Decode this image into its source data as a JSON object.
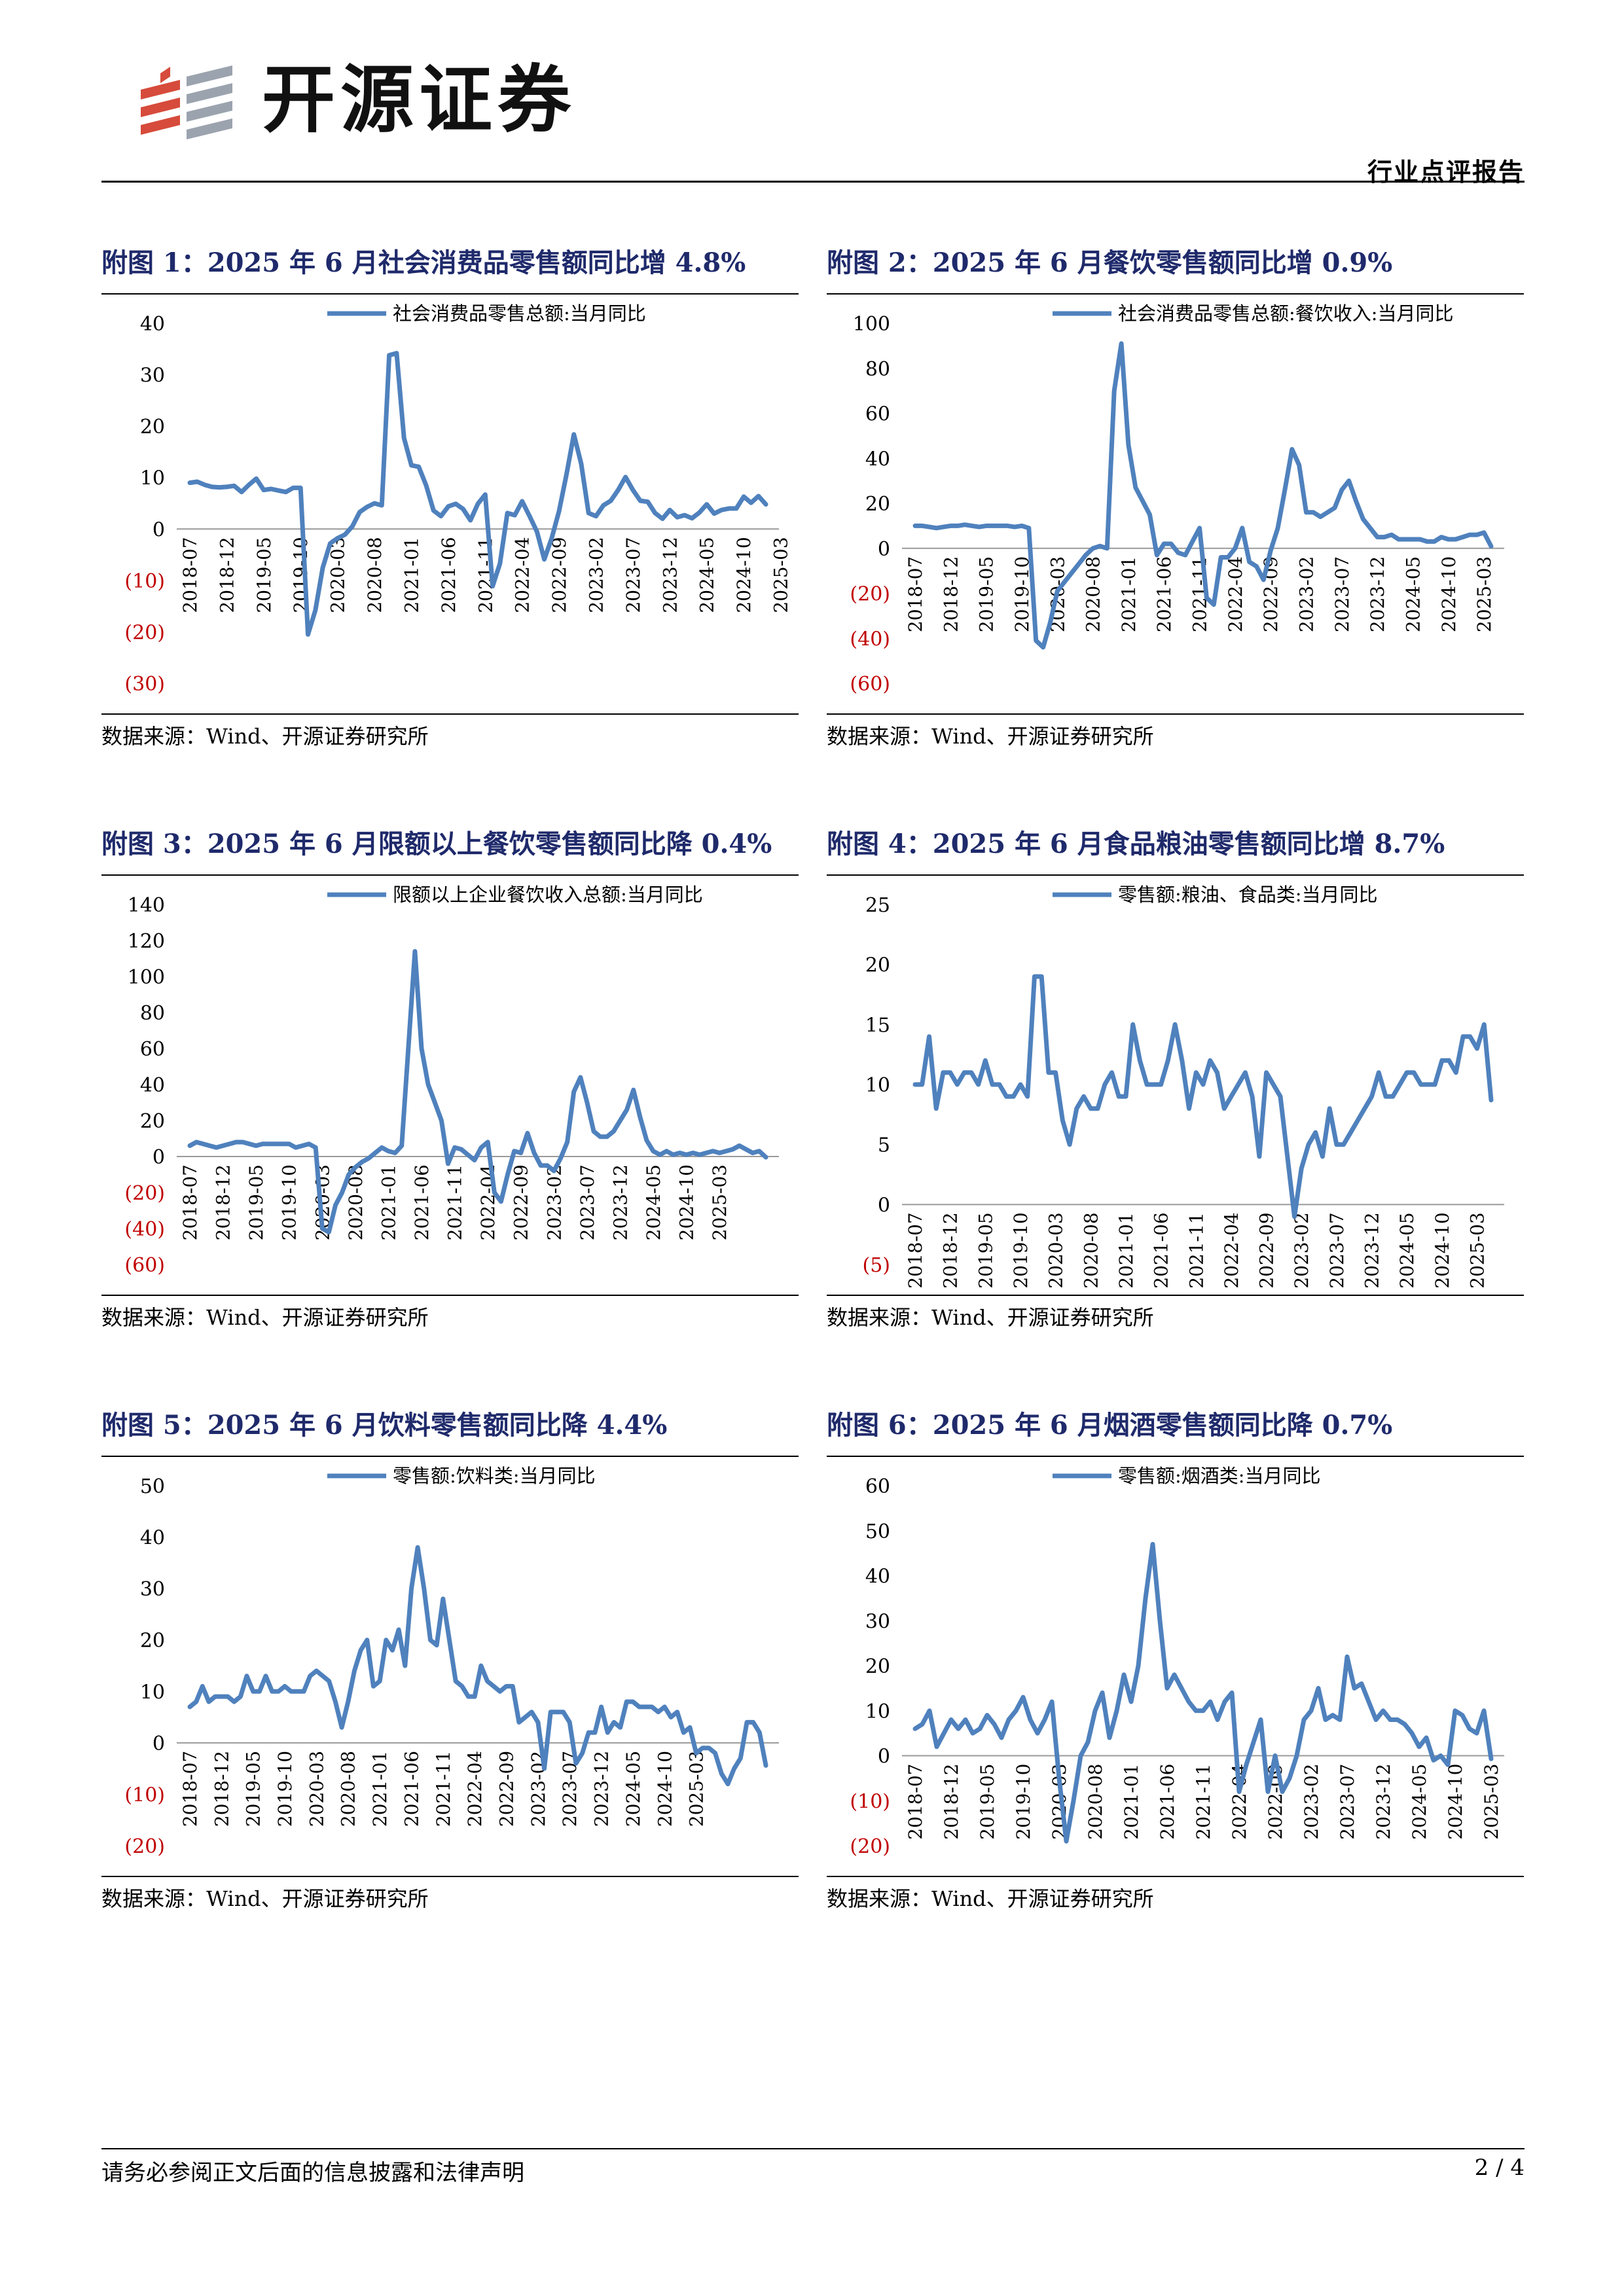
{
  "header": {
    "brand": "开源证券",
    "report_type": "行业点评报告"
  },
  "colors": {
    "series": "#4F81BD",
    "title": "#1F2A6B",
    "negative_label": "#C00000",
    "logo_red": "#D64B3B",
    "logo_gray": "#9BA3AE"
  },
  "footer": {
    "disclaimer": "请务必参阅正文后面的信息披露和法律声明",
    "page": "2 / 4"
  },
  "dates": [
    "2018-07",
    "2018-12",
    "2019-05",
    "2019-10",
    "2020-03",
    "2020-08",
    "2021-01",
    "2021-06",
    "2021-11",
    "2022-04",
    "2022-09",
    "2023-02",
    "2023-07",
    "2023-12",
    "2024-05",
    "2024-10",
    "2025-03"
  ],
  "panels": [
    {
      "title": "附图 1：2025 年 6 月社会消费品零售额同比增 4.8%",
      "source": "数据来源：Wind、开源证券研究所",
      "chart_data": {
        "type": "line",
        "series": [
          {
            "name": "社会消费品零售总额:当月同比",
            "values": [
              9,
              9.2,
              8.6,
              8.2,
              8.1,
              8.2,
              8.4,
              7.2,
              8.6,
              9.8,
              7.6,
              7.8,
              7.5,
              7.2,
              8,
              8,
              -20.5,
              -15.8,
              -7.5,
              -2.8,
              -1.8,
              -1.1,
              0.5,
              3.3,
              4.3,
              5,
              4.6,
              33.8,
              34.2,
              17.7,
              12.4,
              12.1,
              8.5,
              3.6,
              2.5,
              4.4,
              4.9,
              3.9,
              1.7,
              4.9,
              6.7,
              -11.1,
              -6.7,
              3.1,
              2.7,
              5.4,
              2.5,
              -0.5,
              -5.9,
              -1.8,
              3.5,
              10.6,
              18.4,
              12.7,
              3.1,
              2.5,
              4.6,
              5.5,
              7.6,
              10.1,
              7.6,
              5.5,
              5.3,
              3.1,
              2,
              3.7,
              2.3,
              2.7,
              2.1,
              3.2,
              4.8,
              3,
              3.7,
              4,
              4,
              6.3,
              5.1,
              6.4,
              4.8
            ]
          }
        ],
        "x_tick_labels": [
          "2018-07",
          "2018-12",
          "2019-05",
          "2019-10",
          "2020-03",
          "2020-08",
          "2021-01",
          "2021-06",
          "2021-11",
          "2022-04",
          "2022-09",
          "2023-02",
          "2023-07",
          "2023-12",
          "2024-05",
          "2024-10",
          "2025-03"
        ],
        "ylim": [
          -30,
          40
        ],
        "y_ticks": [
          40,
          30,
          20,
          10,
          0,
          -10,
          -20,
          -30
        ],
        "y_tick_labels": [
          "40",
          "30",
          "20",
          "10",
          "0",
          "(10)",
          "(20)",
          "(30)"
        ],
        "legend_position": "top"
      }
    },
    {
      "title": "附图 2：2025 年 6 月餐饮零售额同比增 0.9%",
      "source": "数据来源：Wind、开源证券研究所",
      "chart_data": {
        "type": "line",
        "series": [
          {
            "name": "社会消费品零售总额:餐饮收入:当月同比",
            "values": [
              10,
              10,
              9.5,
              9,
              9.5,
              10,
              10,
              10.5,
              10,
              9.5,
              10,
              10,
              10,
              10,
              9.5,
              10,
              9,
              -41,
              -44,
              -33,
              -19,
              -15,
              -11,
              -7,
              -3,
              0,
              1,
              0,
              70,
              91,
              46,
              27,
              21,
              15,
              -3,
              2,
              2,
              -2,
              -3,
              3,
              9,
              -22,
              -25,
              -4,
              -4,
              0,
              9,
              -6,
              -8,
              -14,
              -1,
              9,
              26,
              44,
              37,
              16,
              16,
              14,
              16,
              18,
              26,
              30,
              21,
              13,
              9,
              5,
              5,
              6,
              4,
              4,
              4,
              4,
              3,
              3,
              5,
              4,
              4,
              5,
              6,
              6,
              7,
              0.9
            ]
          }
        ],
        "x_tick_labels": [
          "2018-07",
          "2018-12",
          "2019-05",
          "2019-10",
          "2020-03",
          "2020-08",
          "2021-01",
          "2021-06",
          "2021-11",
          "2022-04",
          "2022-09",
          "2023-02",
          "2023-07",
          "2023-12",
          "2024-05",
          "2024-10",
          "2025-03"
        ],
        "ylim": [
          -60,
          100
        ],
        "y_ticks": [
          100,
          80,
          60,
          40,
          20,
          0,
          -20,
          -40,
          -60
        ],
        "y_tick_labels": [
          "100",
          "80",
          "60",
          "40",
          "20",
          "0",
          "(20)",
          "(40)",
          "(60)"
        ],
        "legend_position": "top"
      }
    },
    {
      "title": "附图 3：2025 年 6 月限额以上餐饮零售额同比降 0.4%",
      "source": "数据来源：Wind、开源证券研究所",
      "chart_data": {
        "type": "line",
        "series": [
          {
            "name": "限额以上企业餐饮收入总额:当月同比",
            "values": [
              6,
              8,
              7,
              6,
              5,
              6,
              7,
              8,
              8,
              7,
              6,
              7,
              7,
              7,
              7,
              7,
              5,
              6,
              7,
              5,
              -40,
              -42,
              -27,
              -20,
              -10,
              -6,
              -3,
              -1,
              2,
              5,
              3,
              2,
              6,
              60,
              114,
              60,
              40,
              30,
              20,
              -4,
              5,
              4,
              1,
              -2,
              5,
              8,
              -20,
              -25,
              -10,
              3,
              2,
              13,
              2,
              -5,
              -5,
              -8,
              -1,
              8,
              36,
              44,
              30,
              14,
              11,
              11,
              14,
              20,
              26,
              37,
              22,
              9,
              3,
              1,
              3,
              1,
              2,
              1,
              2,
              1,
              2,
              3,
              2,
              3,
              4,
              6,
              4,
              2,
              3,
              -0.4
            ]
          }
        ],
        "x_tick_labels": [
          "2018-07",
          "2018-12",
          "2019-05",
          "2019-10",
          "2020-03",
          "2020-08",
          "2021-01",
          "2021-06",
          "2021-11",
          "2022-04",
          "2022-09",
          "2023-02",
          "2023-07",
          "2023-12",
          "2024-05",
          "2024-10",
          "2025-03"
        ],
        "ylim": [
          -60,
          140
        ],
        "y_ticks": [
          140,
          120,
          100,
          80,
          60,
          40,
          20,
          0,
          -20,
          -40,
          -60
        ],
        "y_tick_labels": [
          "140",
          "120",
          "100",
          "80",
          "60",
          "40",
          "20",
          "0",
          "(20)",
          "(40)",
          "(60)"
        ],
        "legend_position": "top"
      }
    },
    {
      "title": "附图 4：2025 年 6 月食品粮油零售额同比增 8.7%",
      "source": "数据来源：Wind、开源证券研究所",
      "chart_data": {
        "type": "line",
        "series": [
          {
            "name": "零售额:粮油、食品类:当月同比",
            "values": [
              10,
              10,
              14,
              8,
              11,
              11,
              10,
              11,
              11,
              10,
              12,
              10,
              10,
              9,
              9,
              10,
              9,
              19,
              19,
              11,
              11,
              7,
              5,
              8,
              9,
              8,
              8,
              10,
              11,
              9,
              9,
              15,
              12,
              10,
              10,
              10,
              12,
              15,
              12,
              8,
              11,
              10,
              12,
              11,
              8,
              9,
              10,
              11,
              9,
              4,
              11,
              10,
              9,
              4,
              -1,
              3,
              5,
              6,
              4,
              8,
              5,
              5,
              6,
              7,
              8,
              9,
              11,
              9,
              9,
              10,
              11,
              11,
              10,
              10,
              10,
              12,
              12,
              11,
              14,
              14,
              13,
              15,
              8.7
            ]
          }
        ],
        "x_tick_labels": [
          "2018-07",
          "2018-12",
          "2019-05",
          "2019-10",
          "2020-03",
          "2020-08",
          "2021-01",
          "2021-06",
          "2021-11",
          "2022-04",
          "2022-09",
          "2023-02",
          "2023-07",
          "2023-12",
          "2024-05",
          "2024-10",
          "2025-03"
        ],
        "ylim": [
          -5,
          25
        ],
        "y_ticks": [
          25,
          20,
          15,
          10,
          5,
          0,
          -5
        ],
        "y_tick_labels": [
          "25",
          "20",
          "15",
          "10",
          "5",
          "0",
          "(5)"
        ],
        "legend_position": "top"
      }
    },
    {
      "title": "附图 5：2025 年 6 月饮料零售额同比降 4.4%",
      "source": "数据来源：Wind、开源证券研究所",
      "chart_data": {
        "type": "line",
        "series": [
          {
            "name": "零售额:饮料类:当月同比",
            "values": [
              7,
              8,
              11,
              8,
              9,
              9,
              9,
              8,
              9,
              13,
              10,
              10,
              13,
              10,
              10,
              11,
              10,
              10,
              10,
              13,
              14,
              13,
              12,
              8,
              3,
              8,
              14,
              18,
              20,
              11,
              12,
              20,
              18,
              22,
              15,
              30,
              38,
              30,
              20,
              19,
              28,
              20,
              12,
              11,
              9,
              9,
              15,
              12,
              11,
              10,
              11,
              11,
              4,
              5,
              6,
              4,
              -5,
              6,
              6,
              6,
              4,
              -4,
              -2,
              2,
              2,
              7,
              2,
              4,
              3,
              8,
              8,
              7,
              7,
              7,
              6,
              7,
              5,
              6,
              2,
              3,
              -2,
              -1,
              -1,
              -2,
              -6,
              -8,
              -5,
              -3,
              4,
              4,
              2,
              -4.4
            ]
          }
        ],
        "x_tick_labels": [
          "2018-07",
          "2018-12",
          "2019-05",
          "2019-10",
          "2020-03",
          "2020-08",
          "2021-01",
          "2021-06",
          "2021-11",
          "2022-04",
          "2022-09",
          "2023-02",
          "2023-07",
          "2023-12",
          "2024-05",
          "2024-10",
          "2025-03"
        ],
        "ylim": [
          -20,
          50
        ],
        "y_ticks": [
          50,
          40,
          30,
          20,
          10,
          0,
          -10,
          -20
        ],
        "y_tick_labels": [
          "50",
          "40",
          "30",
          "20",
          "10",
          "0",
          "(10)",
          "(20)"
        ],
        "legend_position": "top"
      }
    },
    {
      "title": "附图 6：2025 年 6 月烟酒零售额同比降 0.7%",
      "source": "数据来源：Wind、开源证券研究所",
      "chart_data": {
        "type": "line",
        "series": [
          {
            "name": "零售额:烟酒类:当月同比",
            "values": [
              6,
              7,
              10,
              2,
              5,
              8,
              6,
              8,
              5,
              6,
              9,
              7,
              4,
              8,
              10,
              13,
              8,
              5,
              8,
              12,
              -5,
              -19,
              -10,
              0,
              3,
              10,
              14,
              4,
              10,
              18,
              12,
              20,
              35,
              47,
              30,
              15,
              18,
              15,
              12,
              10,
              10,
              12,
              8,
              12,
              14,
              -8,
              -2,
              3,
              8,
              -8,
              0,
              -8,
              -5,
              0,
              8,
              10,
              15,
              8,
              9,
              8,
              22,
              15,
              16,
              12,
              8,
              10,
              8,
              8,
              7,
              5,
              2,
              4,
              -1,
              0,
              -2,
              10,
              9,
              6,
              5,
              10,
              -0.7
            ]
          }
        ],
        "x_tick_labels": [
          "2018-07",
          "2018-12",
          "2019-05",
          "2019-10",
          "2020-03",
          "2020-08",
          "2021-01",
          "2021-06",
          "2021-11",
          "2022-04",
          "2022-09",
          "2023-02",
          "2023-07",
          "2023-12",
          "2024-05",
          "2024-10",
          "2025-03"
        ],
        "ylim": [
          -20,
          60
        ],
        "y_ticks": [
          60,
          50,
          40,
          30,
          20,
          10,
          0,
          -10,
          -20
        ],
        "y_tick_labels": [
          "60",
          "50",
          "40",
          "30",
          "20",
          "10",
          "0",
          "(10)",
          "(20)"
        ],
        "legend_position": "top"
      }
    }
  ]
}
